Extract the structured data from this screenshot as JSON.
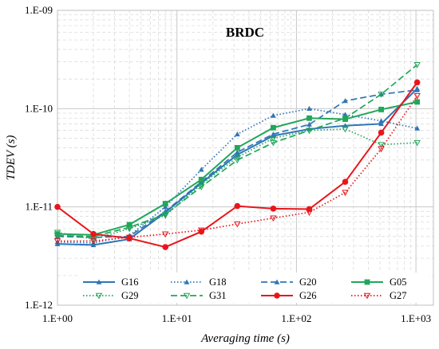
{
  "chart_data": {
    "type": "line",
    "title": "BRDC",
    "xlabel": "Averaging time (s)",
    "ylabel": "TDEV (s)",
    "xscale": "log",
    "yscale": "log",
    "xlim": [
      1,
      1400
    ],
    "ylim": [
      1e-12,
      1e-09
    ],
    "x_ticks": [
      1,
      10,
      100,
      1000
    ],
    "x_tick_labels": [
      "1.E+00",
      "1.E+01",
      "1.E+02",
      "1.E+03"
    ],
    "y_ticks": [
      1e-12,
      1e-11,
      1e-10,
      1e-09
    ],
    "y_tick_labels": [
      "1.E-12",
      "1.E-11",
      "1.E-10",
      "1.E-09"
    ],
    "grid": true,
    "legend_position": "bottom",
    "x": [
      1,
      2,
      4,
      8,
      16,
      32,
      64,
      128,
      256,
      512,
      1024
    ],
    "series": [
      {
        "name": "G16",
        "color": "#2e75b6",
        "dash": "solid",
        "marker": "triangle",
        "values": [
          4.2e-12,
          4.1e-12,
          4.7e-12,
          8.8e-12,
          1.75e-11,
          3.4e-11,
          5.3e-11,
          6.2e-11,
          6.7e-11,
          7e-11,
          1.6e-10
        ]
      },
      {
        "name": "G18",
        "color": "#2e75b6",
        "dash": "dotted",
        "marker": "triangle",
        "values": [
          4.4e-12,
          4.3e-12,
          5.1e-12,
          1e-11,
          2.4e-11,
          5.5e-11,
          8.5e-11,
          1e-10,
          8.7e-11,
          7.5e-11,
          6.3e-11
        ]
      },
      {
        "name": "G20",
        "color": "#2e75b6",
        "dash": "dashed",
        "marker": "triangle",
        "values": [
          5e-12,
          4.9e-12,
          5e-12,
          9e-12,
          1.8e-11,
          3.6e-11,
          5.5e-11,
          6.9e-11,
          1.2e-10,
          1.4e-10,
          1.55e-10
        ]
      },
      {
        "name": "G05",
        "color": "#21a65a",
        "dash": "solid",
        "marker": "square",
        "values": [
          5.3e-12,
          5.2e-12,
          6.6e-12,
          1.08e-11,
          1.9e-11,
          4e-11,
          6.4e-11,
          8e-11,
          7.8e-11,
          9.8e-11,
          1.17e-10
        ]
      },
      {
        "name": "G29",
        "color": "#21a65a",
        "dash": "dotted",
        "marker": "triangle-down",
        "values": [
          5.5e-12,
          4.7e-12,
          6e-12,
          8.2e-12,
          1.7e-11,
          3.2e-11,
          5e-11,
          6e-11,
          6.2e-11,
          4.3e-11,
          4.5e-11
        ]
      },
      {
        "name": "G31",
        "color": "#21a65a",
        "dash": "dashed",
        "marker": "triangle-down",
        "values": [
          5.1e-12,
          5e-12,
          6.2e-12,
          8.4e-12,
          1.6e-11,
          3e-11,
          4.5e-11,
          6e-11,
          8e-11,
          1.4e-10,
          2.8e-10
        ]
      },
      {
        "name": "G26",
        "color": "#e8161b",
        "dash": "solid",
        "marker": "circle",
        "values": [
          1e-11,
          5.3e-12,
          4.8e-12,
          3.9e-12,
          5.6e-12,
          1.02e-11,
          9.6e-12,
          9.5e-12,
          1.8e-11,
          5.7e-11,
          1.85e-10
        ]
      },
      {
        "name": "G27",
        "color": "#e8161b",
        "dash": "dotted",
        "marker": "triangle-down",
        "values": [
          4.5e-12,
          4.5e-12,
          4.9e-12,
          5.3e-12,
          5.8e-12,
          6.7e-12,
          7.7e-12,
          8.8e-12,
          1.4e-11,
          3.9e-11,
          1.35e-10
        ]
      }
    ]
  }
}
